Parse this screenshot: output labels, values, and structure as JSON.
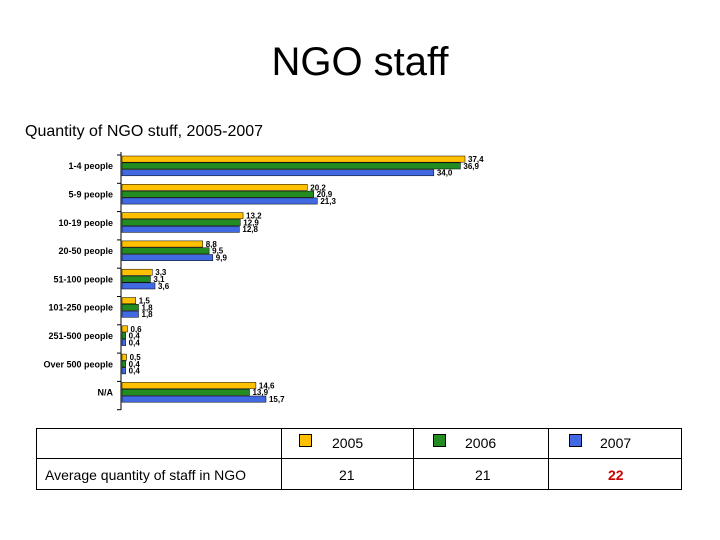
{
  "slide": {
    "title": "NGO staff",
    "subtitle": "Quantity of NGO stuff, 2005-2007"
  },
  "chart_data": {
    "type": "bar",
    "orientation": "horizontal",
    "categories": [
      "1-4 people",
      "5-9 people",
      "10-19 people",
      "20-50 people",
      "51-100 people",
      "101-250 people",
      "251-500 people",
      "Over 500 people",
      "N/A"
    ],
    "series": [
      {
        "name": "2005",
        "color": "#FFC000",
        "values": [
          37.4,
          20.2,
          13.2,
          8.8,
          3.3,
          1.5,
          0.6,
          0.5,
          14.6
        ],
        "labels": [
          "37,4",
          "20,2",
          "13,2",
          "8,8",
          "3,3",
          "1,5",
          "0,6",
          "0,5",
          "14,6"
        ]
      },
      {
        "name": "2006",
        "color": "#228B22",
        "values": [
          36.9,
          20.9,
          12.9,
          9.5,
          3.1,
          1.8,
          0.4,
          0.4,
          13.9
        ],
        "labels": [
          "36,9",
          "20,9",
          "12,9",
          "9,5",
          "3,1",
          "1,8",
          "0,4",
          "0,4",
          "13,9"
        ]
      },
      {
        "name": "2007",
        "color": "#4169E1",
        "values": [
          34.0,
          21.3,
          12.8,
          9.9,
          3.6,
          1.8,
          0.4,
          0.4,
          15.7
        ],
        "labels": [
          "34,0",
          "21,3",
          "12,8",
          "9,9",
          "3,6",
          "1,8",
          "0,4",
          "0,4",
          "15,7"
        ]
      }
    ],
    "grid": false,
    "legend": "table below chart"
  },
  "table": {
    "years": [
      "2005",
      "2006",
      "2007"
    ],
    "row_label": "Average quantity of staff in NGO",
    "values": [
      "21",
      "21",
      "22"
    ],
    "highlight_color": "#CC0000"
  }
}
